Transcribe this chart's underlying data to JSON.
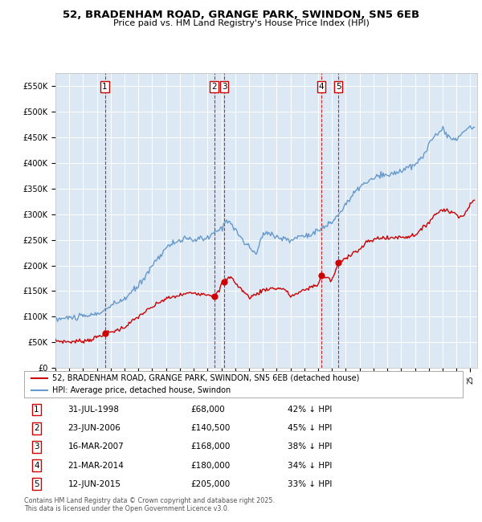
{
  "title": "52, BRADENHAM ROAD, GRANGE PARK, SWINDON, SN5 6EB",
  "subtitle": "Price paid vs. HM Land Registry's House Price Index (HPI)",
  "background_color": "#dce9f5",
  "plot_bg_color": "#dce9f5",
  "ylim": [
    0,
    575000
  ],
  "yticks": [
    0,
    50000,
    100000,
    150000,
    200000,
    250000,
    300000,
    350000,
    400000,
    450000,
    500000,
    550000
  ],
  "ytick_labels": [
    "£0",
    "£50K",
    "£100K",
    "£150K",
    "£200K",
    "£250K",
    "£300K",
    "£350K",
    "£400K",
    "£450K",
    "£500K",
    "£550K"
  ],
  "sale_dates_num": [
    1998.58,
    2006.48,
    2007.21,
    2014.22,
    2015.45
  ],
  "sale_prices": [
    68000,
    140500,
    168000,
    180000,
    205000
  ],
  "sale_labels": [
    "1",
    "2",
    "3",
    "4",
    "5"
  ],
  "sale_dates_str": [
    "31-JUL-1998",
    "23-JUN-2006",
    "16-MAR-2007",
    "21-MAR-2014",
    "12-JUN-2015"
  ],
  "sale_pct": [
    "42%",
    "45%",
    "38%",
    "34%",
    "33%"
  ],
  "red_line_color": "#cc0000",
  "blue_line_color": "#6699cc",
  "vline_color": "#cc0000",
  "marker_color": "#cc0000",
  "footer_text": "Contains HM Land Registry data © Crown copyright and database right 2025.\nThis data is licensed under the Open Government Licence v3.0.",
  "legend_label_red": "52, BRADENHAM ROAD, GRANGE PARK, SWINDON, SN5 6EB (detached house)",
  "legend_label_blue": "HPI: Average price, detached house, Swindon",
  "table_rows": [
    [
      "1",
      "31-JUL-1998",
      "£68,000",
      "42% ↓ HPI"
    ],
    [
      "2",
      "23-JUN-2006",
      "£140,500",
      "45% ↓ HPI"
    ],
    [
      "3",
      "16-MAR-2007",
      "£168,000",
      "38% ↓ HPI"
    ],
    [
      "4",
      "21-MAR-2014",
      "£180,000",
      "34% ↓ HPI"
    ],
    [
      "5",
      "12-JUN-2015",
      "£205,000",
      "33% ↓ HPI"
    ]
  ]
}
